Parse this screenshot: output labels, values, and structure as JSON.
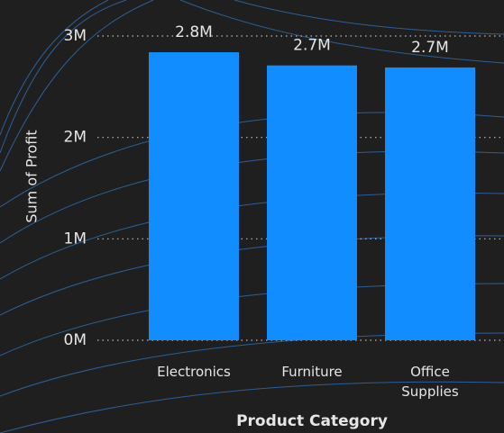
{
  "chart_data": {
    "type": "bar",
    "x_label": "Product Category",
    "y_label": "Sum of Profit",
    "categories": [
      "Electronics",
      "Furniture",
      "Office Supplies"
    ],
    "values": [
      2840000,
      2710000,
      2690000
    ],
    "value_labels": [
      "2.8M",
      "2.7M",
      "2.7M"
    ],
    "color": "#118dff",
    "ylim": [
      0,
      3000000
    ],
    "yticks": [
      {
        "value": 0,
        "label": "0M"
      },
      {
        "value": 1000000,
        "label": "1M"
      },
      {
        "value": 2000000,
        "label": "2M"
      },
      {
        "value": 3000000,
        "label": "3M"
      }
    ],
    "grid": true
  }
}
